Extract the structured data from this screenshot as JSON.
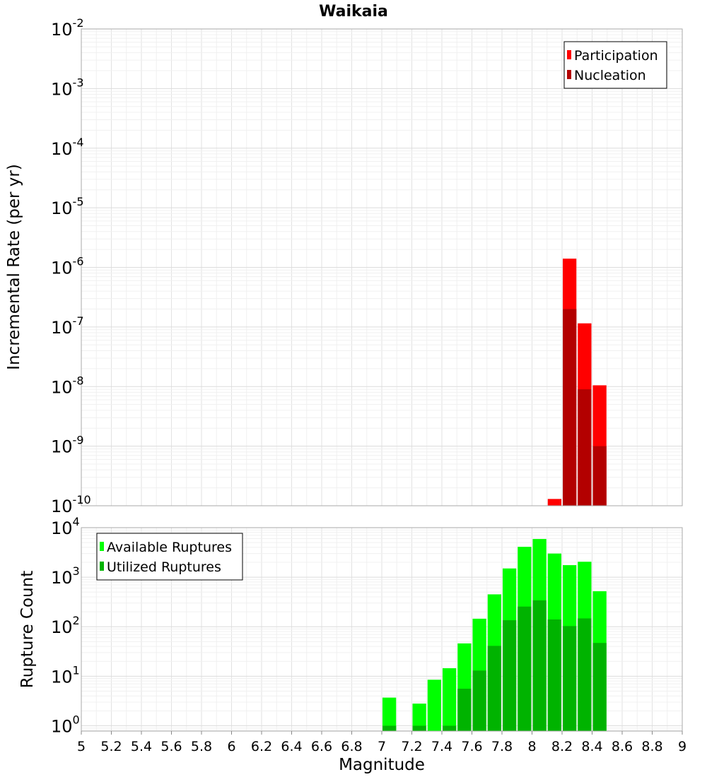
{
  "chart_data": [
    {
      "type": "bar",
      "panel": "top",
      "title": "Waikaia",
      "xlabel": "",
      "ylabel": "Incremental Rate (per yr)",
      "y_scale": "log",
      "ylim": [
        1e-10,
        0.01
      ],
      "y_ticks": [
        {
          "base": "10",
          "exp": "-2"
        },
        {
          "base": "10",
          "exp": "-3"
        },
        {
          "base": "10",
          "exp": "-4"
        },
        {
          "base": "10",
          "exp": "-5"
        },
        {
          "base": "10",
          "exp": "-6"
        },
        {
          "base": "10",
          "exp": "-7"
        },
        {
          "base": "10",
          "exp": "-8"
        },
        {
          "base": "10",
          "exp": "-9"
        },
        {
          "base": "10",
          "exp": "-10"
        }
      ],
      "xlim": [
        5,
        9
      ],
      "grid": true,
      "legend_position": "top-right",
      "series": [
        {
          "name": "Participation",
          "color": "#ff0000",
          "x": [
            8.15,
            8.25,
            8.35,
            8.45
          ],
          "values": [
            1.3e-10,
            1.4e-06,
            1.15e-07,
            1.05e-08
          ]
        },
        {
          "name": "Nucleation",
          "color": "#b30000",
          "x": [
            8.25,
            8.35,
            8.45
          ],
          "values": [
            2e-07,
            9e-09,
            1e-09
          ]
        }
      ]
    },
    {
      "type": "bar",
      "panel": "bottom",
      "xlabel": "Magnitude",
      "ylabel": "Rupture Count",
      "y_scale": "log",
      "ylim": [
        0.78,
        10000
      ],
      "y_ticks": [
        {
          "base": "10",
          "exp": "4"
        },
        {
          "base": "10",
          "exp": "3"
        },
        {
          "base": "10",
          "exp": "2"
        },
        {
          "base": "10",
          "exp": "1"
        },
        {
          "base": "10",
          "exp": "0"
        }
      ],
      "xlim": [
        5,
        9
      ],
      "x_ticks": [
        "5",
        "5.2",
        "5.4",
        "5.6",
        "5.8",
        "6",
        "6.2",
        "6.4",
        "6.6",
        "6.8",
        "7",
        "7.2",
        "7.4",
        "7.6",
        "7.8",
        "8",
        "8.2",
        "8.4",
        "8.6",
        "8.8",
        "9"
      ],
      "grid": true,
      "legend_position": "top-left",
      "series": [
        {
          "name": "Available Ruptures",
          "color": "#00ff00",
          "x": [
            7.05,
            7.25,
            7.35,
            7.45,
            7.55,
            7.65,
            7.75,
            7.85,
            7.95,
            8.05,
            8.15,
            8.25,
            8.35,
            8.45
          ],
          "values": [
            3.7,
            2.8,
            8.5,
            14.5,
            46,
            145,
            450,
            1500,
            4100,
            5900,
            3000,
            1750,
            2050,
            520
          ]
        },
        {
          "name": "Utilized Ruptures",
          "color": "#00b300",
          "x": [
            7.05,
            7.25,
            7.45,
            7.55,
            7.65,
            7.75,
            7.85,
            7.95,
            8.05,
            8.15,
            8.25,
            8.35,
            8.45
          ],
          "values": [
            1,
            1,
            1,
            5.6,
            13,
            41,
            135,
            255,
            340,
            140,
            103,
            147,
            47
          ]
        }
      ]
    }
  ]
}
